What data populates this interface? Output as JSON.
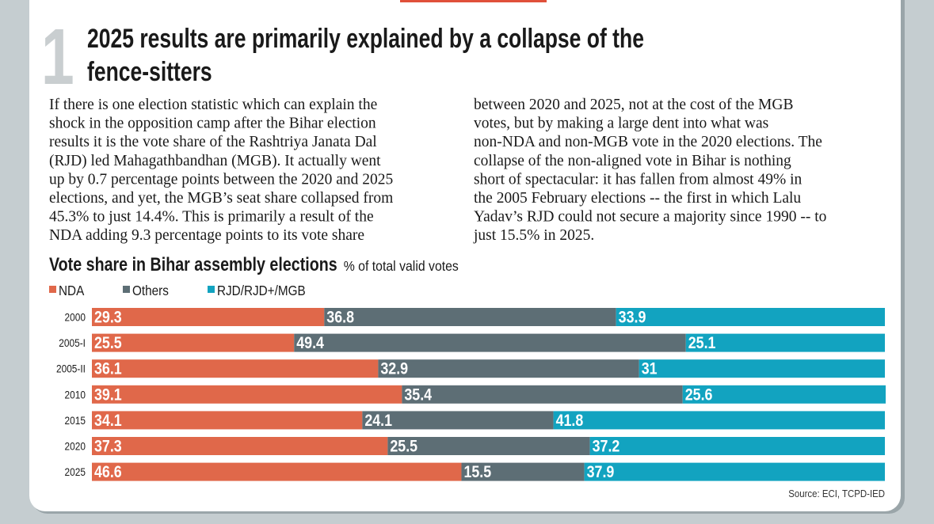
{
  "header": {
    "number": "1",
    "title_lines": [
      "2025 results are primarily explained by a collapse of the",
      "fence-sitters"
    ]
  },
  "article": {
    "columns": [
      [
        "If there is one election statistic which can explain the",
        "shock in the opposition camp after the Bihar election",
        "results it is the vote share of the Rashtriya Janata Dal",
        "(RJD) led Mahagathbandhan (MGB). It actually went",
        "up by 0.7 percentage points between the 2020 and 2025",
        "elections, and yet, the MGB’s seat share collapsed from",
        "45.3% to just 14.4%. This is primarily a result of the",
        "NDA adding 9.3 percentage points to its vote share"
      ],
      [
        "between 2020 and 2025, not at the cost of the MGB",
        "votes, but by making a large dent into what was",
        "non-NDA and non-MGB vote in the 2020 elections. The",
        "collapse of the non-aligned vote in Bihar is nothing",
        "short of spectacular: it has fallen from almost 49% in",
        "the 2005 February elections -- the first in which Lalu",
        "Yadav’s RJD could not secure a majority since 1990 -- to",
        "just 15.5% in 2025."
      ]
    ]
  },
  "chart_data": {
    "type": "bar",
    "stacked": true,
    "orientation": "horizontal",
    "title": "Vote share in Bihar assembly elections",
    "subtitle": "% of total valid votes",
    "categories": [
      "2000",
      "2005-I",
      "2005-II",
      "2010",
      "2015",
      "2020",
      "2025"
    ],
    "series": [
      {
        "name": "NDA",
        "color": "#e0684a",
        "values": [
          29.3,
          25.5,
          36.1,
          39.1,
          34.1,
          37.3,
          46.6
        ]
      },
      {
        "name": "Others",
        "color": "#5d6e75",
        "values": [
          36.8,
          49.4,
          32.9,
          35.4,
          24.1,
          25.5,
          15.5
        ]
      },
      {
        "name": "RJD/RJD+/MGB",
        "color": "#12a3c0",
        "values": [
          33.9,
          25.1,
          31,
          25.6,
          41.8,
          37.2,
          37.9
        ]
      }
    ],
    "xlim": [
      0,
      100
    ],
    "legend": "top-left",
    "source": "Source: ECI, TCPD-IED"
  }
}
